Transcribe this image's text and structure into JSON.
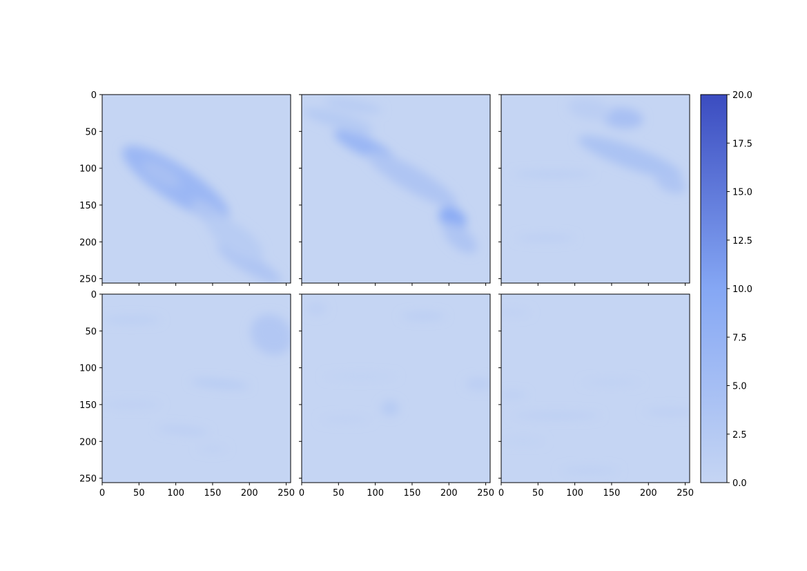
{
  "chart_data": {
    "type": "heatmap",
    "layout": "2x3 grid",
    "colorbar": {
      "min": 0.0,
      "max": 20.0,
      "ticks": [
        "0.0",
        "2.5",
        "5.0",
        "7.5",
        "10.0",
        "12.5",
        "15.0",
        "17.5",
        "20.0"
      ],
      "tick_values": [
        0,
        2.5,
        5,
        7.5,
        10,
        12.5,
        15,
        17.5,
        20
      ],
      "colors": {
        "low": "#c5d5f3",
        "mid": "#85a7f4",
        "high": "#3b4cc0"
      }
    },
    "x_ticks": [
      "0",
      "50",
      "100",
      "150",
      "200",
      "250"
    ],
    "y_ticks": [
      "0",
      "50",
      "100",
      "150",
      "200",
      "250"
    ],
    "xlim": [
      0,
      256
    ],
    "ylim": [
      256,
      0
    ],
    "panels": [
      {
        "name": "row1-col1",
        "features": [
          {
            "x": 100,
            "y": 120,
            "sx": 85,
            "sy": 24,
            "angle": 33,
            "v": 6.5
          },
          {
            "x": 80,
            "y": 108,
            "sx": 30,
            "sy": 12,
            "angle": 30,
            "v": 4.5
          },
          {
            "x": 150,
            "y": 165,
            "sx": 35,
            "sy": 12,
            "angle": 35,
            "v": 3.5
          },
          {
            "x": 200,
            "y": 230,
            "sx": 50,
            "sy": 12,
            "angle": 30,
            "v": 3.5
          },
          {
            "x": 180,
            "y": 195,
            "sx": 45,
            "sy": 18,
            "angle": 35,
            "v": 2
          }
        ]
      },
      {
        "name": "row1-col2",
        "features": [
          {
            "x": 85,
            "y": 70,
            "sx": 45,
            "sy": 12,
            "angle": 25,
            "v": 7
          },
          {
            "x": 78,
            "y": 58,
            "sx": 18,
            "sy": 6,
            "angle": 15,
            "v": 6
          },
          {
            "x": 150,
            "y": 115,
            "sx": 70,
            "sy": 16,
            "angle": 30,
            "v": 3.5
          },
          {
            "x": 205,
            "y": 168,
            "sx": 20,
            "sy": 14,
            "angle": 30,
            "v": 9
          },
          {
            "x": 215,
            "y": 195,
            "sx": 28,
            "sy": 14,
            "angle": 40,
            "v": 3.5
          },
          {
            "x": 50,
            "y": 35,
            "sx": 50,
            "sy": 10,
            "angle": 15,
            "v": 2.5
          },
          {
            "x": 70,
            "y": 15,
            "sx": 40,
            "sy": 8,
            "angle": 10,
            "v": 2
          }
        ]
      },
      {
        "name": "row1-col3",
        "features": [
          {
            "x": 165,
            "y": 32,
            "sx": 28,
            "sy": 14,
            "angle": 5,
            "v": 4.5
          },
          {
            "x": 175,
            "y": 85,
            "sx": 75,
            "sy": 15,
            "angle": 20,
            "v": 4
          },
          {
            "x": 230,
            "y": 120,
            "sx": 22,
            "sy": 12,
            "angle": 25,
            "v": 3.5
          },
          {
            "x": 70,
            "y": 108,
            "sx": 55,
            "sy": 3,
            "angle": 0,
            "v": 2.5
          },
          {
            "x": 120,
            "y": 20,
            "sx": 30,
            "sy": 14,
            "angle": 10,
            "v": 1.5
          },
          {
            "x": 60,
            "y": 195,
            "sx": 40,
            "sy": 4,
            "angle": 0,
            "v": 1.5
          }
        ]
      },
      {
        "name": "row2-col1",
        "features": [
          {
            "x": 230,
            "y": 55,
            "sx": 30,
            "sy": 26,
            "angle": 40,
            "v": 3
          },
          {
            "x": 160,
            "y": 122,
            "sx": 40,
            "sy": 5,
            "angle": 5,
            "v": 2.5
          },
          {
            "x": 40,
            "y": 35,
            "sx": 40,
            "sy": 4,
            "angle": 0,
            "v": 1.8
          },
          {
            "x": 110,
            "y": 185,
            "sx": 35,
            "sy": 5,
            "angle": 5,
            "v": 1.5
          },
          {
            "x": 40,
            "y": 150,
            "sx": 40,
            "sy": 4,
            "angle": 0,
            "v": 1.3
          },
          {
            "x": 150,
            "y": 210,
            "sx": 20,
            "sy": 3,
            "angle": 0,
            "v": 1.2
          }
        ]
      },
      {
        "name": "row2-col2",
        "features": [
          {
            "x": 120,
            "y": 155,
            "sx": 12,
            "sy": 10,
            "angle": 0,
            "v": 2.5
          },
          {
            "x": 165,
            "y": 30,
            "sx": 30,
            "sy": 4,
            "angle": 0,
            "v": 2
          },
          {
            "x": 240,
            "y": 122,
            "sx": 18,
            "sy": 8,
            "angle": 0,
            "v": 1.5
          },
          {
            "x": 20,
            "y": 20,
            "sx": 14,
            "sy": 8,
            "angle": 0,
            "v": 1.3
          },
          {
            "x": 80,
            "y": 112,
            "sx": 50,
            "sy": 3,
            "angle": 0,
            "v": 1.1
          },
          {
            "x": 60,
            "y": 170,
            "sx": 35,
            "sy": 4,
            "angle": 0,
            "v": 1
          }
        ]
      },
      {
        "name": "row2-col3",
        "features": [
          {
            "x": 15,
            "y": 137,
            "sx": 20,
            "sy": 3,
            "angle": 0,
            "v": 2
          },
          {
            "x": 75,
            "y": 165,
            "sx": 60,
            "sy": 4,
            "angle": 0,
            "v": 1.6
          },
          {
            "x": 150,
            "y": 120,
            "sx": 40,
            "sy": 3,
            "angle": 0,
            "v": 1.3
          },
          {
            "x": 230,
            "y": 160,
            "sx": 35,
            "sy": 5,
            "angle": 0,
            "v": 1.2
          },
          {
            "x": 120,
            "y": 240,
            "sx": 40,
            "sy": 5,
            "angle": 0,
            "v": 1.1
          },
          {
            "x": 30,
            "y": 200,
            "sx": 30,
            "sy": 3,
            "angle": 0,
            "v": 1.1
          },
          {
            "x": 15,
            "y": 25,
            "sx": 25,
            "sy": 4,
            "angle": 0,
            "v": 1
          }
        ]
      }
    ]
  }
}
